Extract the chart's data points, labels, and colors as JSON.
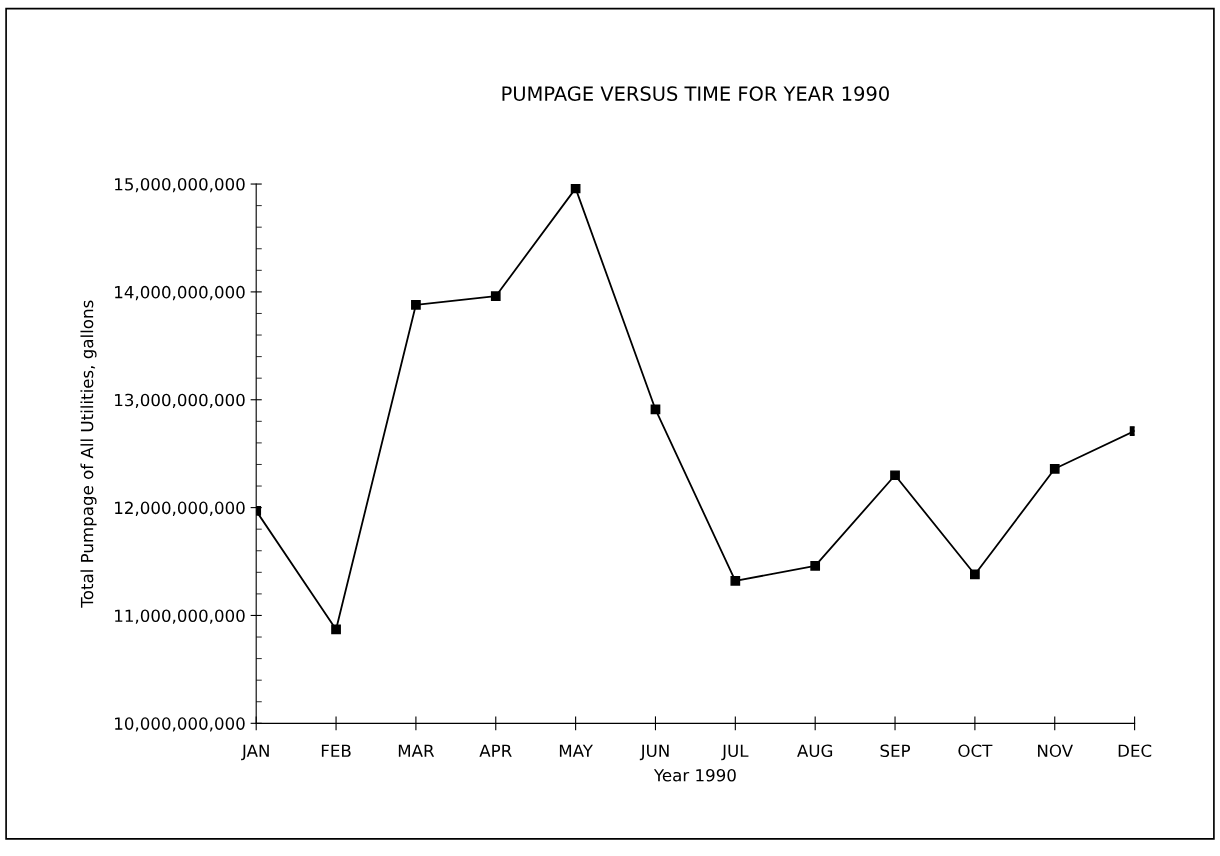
{
  "chart_data": {
    "type": "line",
    "title": "PUMPAGE VERSUS TIME FOR YEAR 1990",
    "xlabel": "Year 1990",
    "ylabel": "Total Pumpage of All Utilities, gallons",
    "categories": [
      "JAN",
      "FEB",
      "MAR",
      "APR",
      "MAY",
      "JUN",
      "JUL",
      "AUG",
      "SEP",
      "OCT",
      "NOV",
      "DEC"
    ],
    "series": [
      {
        "color": "#000000",
        "values": [
          11970000000,
          10870000000,
          13880000000,
          13960000000,
          14960000000,
          12910000000,
          11320000000,
          11460000000,
          12300000000,
          11380000000,
          12360000000,
          12710000000
        ]
      }
    ],
    "ylim": [
      10000000000,
      15000000000
    ],
    "yticks": [
      {
        "value": 10000000000,
        "label": "10,000,000,000"
      },
      {
        "value": 11000000000,
        "label": "11,000,000,000"
      },
      {
        "value": 12000000000,
        "label": "12,000,000,000"
      },
      {
        "value": 13000000000,
        "label": "13,000,000,000"
      },
      {
        "value": 14000000000,
        "label": "14,000,000,000"
      },
      {
        "value": 15000000000,
        "label": "15,000,000,000"
      }
    ],
    "grid": false,
    "legend": false,
    "marker": "square",
    "line_style": "solid"
  }
}
